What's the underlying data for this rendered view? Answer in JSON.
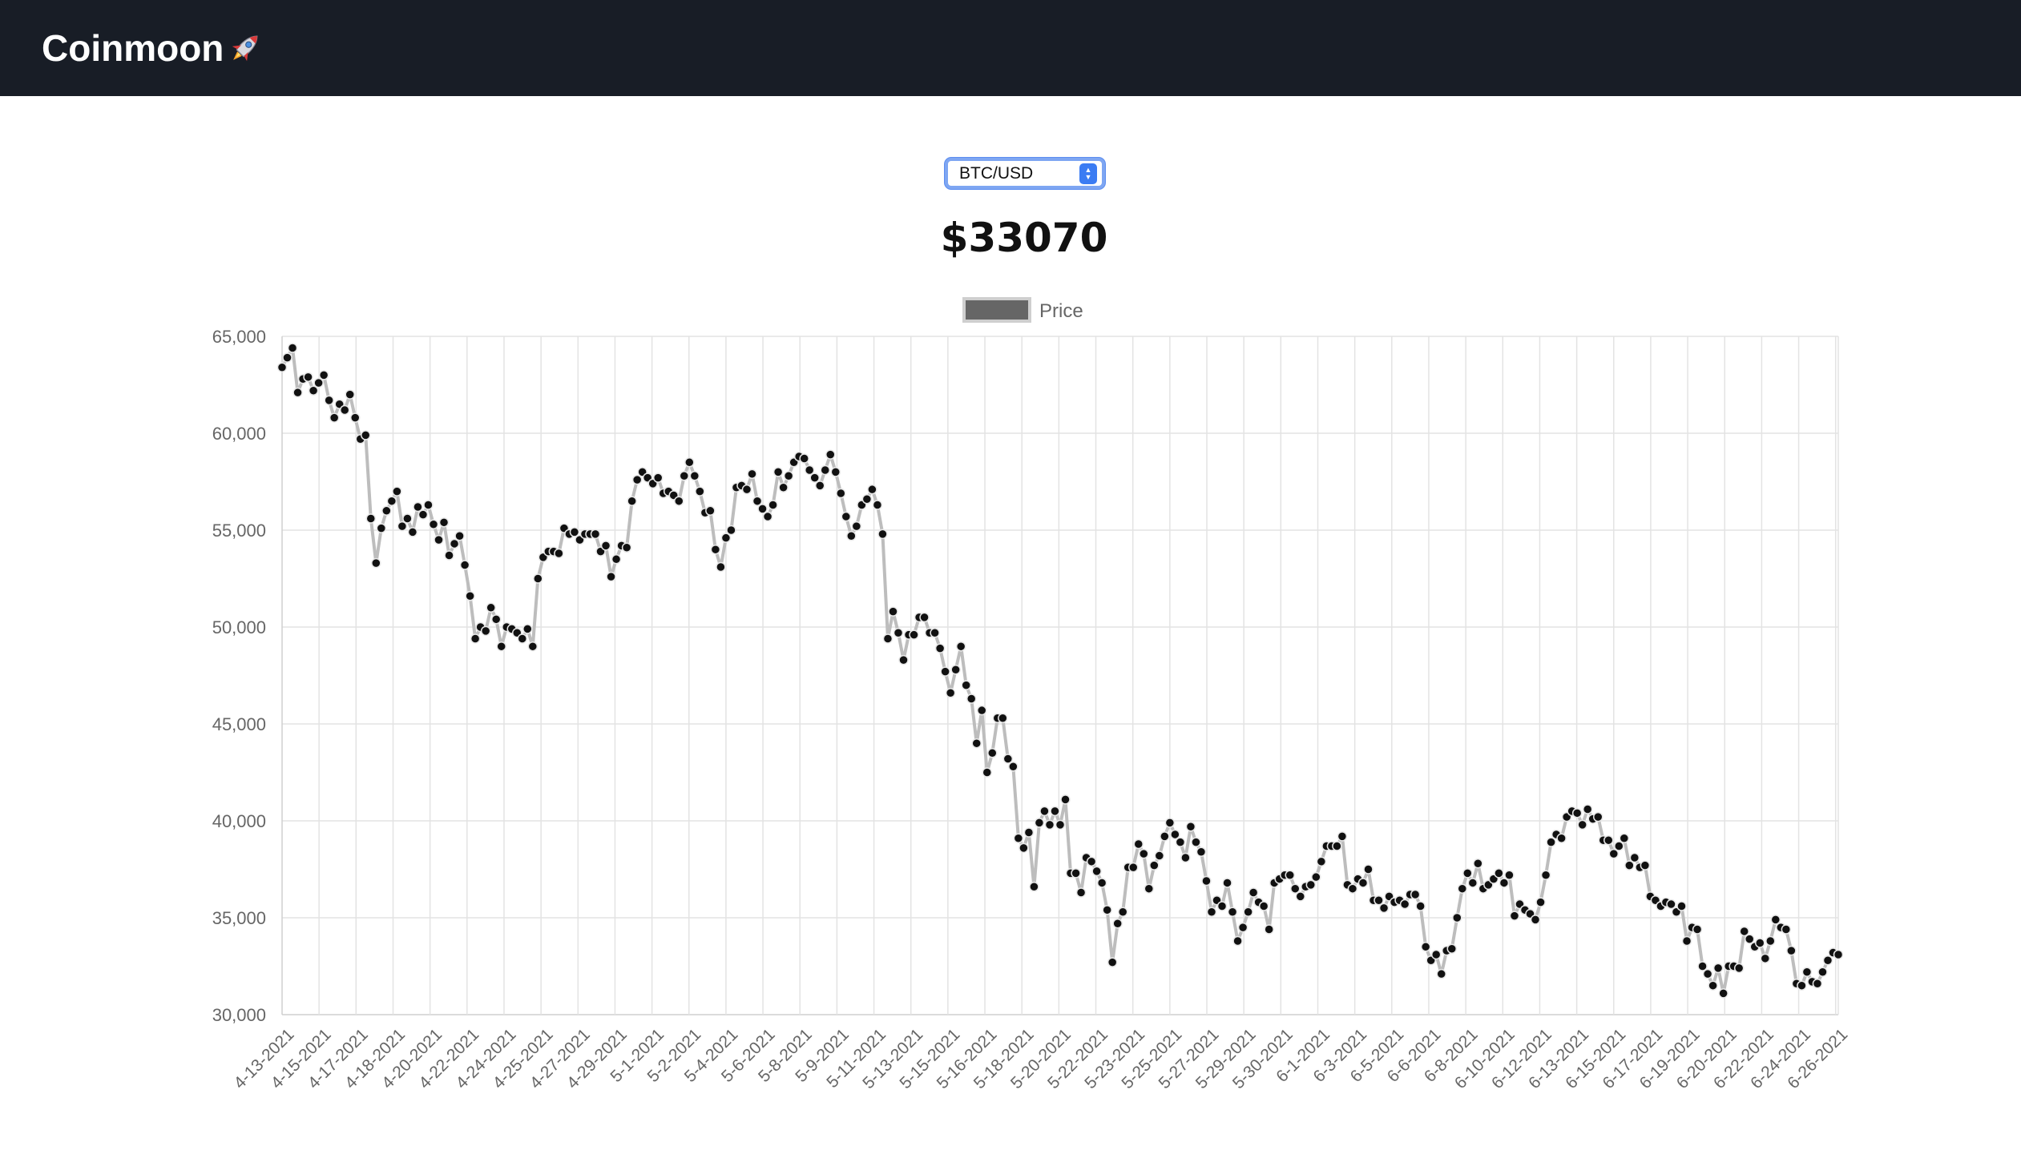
{
  "header": {
    "brand": "Coinmoon"
  },
  "selector": {
    "value": "BTC/USD"
  },
  "price": "$33070",
  "chart_data": {
    "type": "line",
    "legend": {
      "label": "Price",
      "position": "top-center"
    },
    "grid": true,
    "ylim": [
      30000,
      65000
    ],
    "yticks": [
      30000,
      35000,
      40000,
      45000,
      50000,
      55000,
      60000,
      65000
    ],
    "xtick_labels": [
      "4-13-2021",
      "4-15-2021",
      "4-17-2021",
      "4-18-2021",
      "4-20-2021",
      "4-22-2021",
      "4-24-2021",
      "4-25-2021",
      "4-27-2021",
      "4-29-2021",
      "5-1-2021",
      "5-2-2021",
      "5-4-2021",
      "5-6-2021",
      "5-8-2021",
      "5-9-2021",
      "5-11-2021",
      "5-13-2021",
      "5-15-2021",
      "5-16-2021",
      "5-18-2021",
      "5-20-2021",
      "5-22-2021",
      "5-23-2021",
      "5-25-2021",
      "5-27-2021",
      "5-29-2021",
      "5-30-2021",
      "6-1-2021",
      "6-3-2021",
      "6-5-2021",
      "6-6-2021",
      "6-8-2021",
      "6-10-2021",
      "6-12-2021",
      "6-13-2021",
      "6-15-2021",
      "6-17-2021",
      "6-19-2021",
      "6-20-2021",
      "6-22-2021",
      "6-24-2021",
      "6-26-2021"
    ],
    "colors": {
      "line": "#bdbdbd",
      "point": "#111111",
      "legend_box": "#666666"
    },
    "series": [
      {
        "name": "Price",
        "values": [
          63400,
          63900,
          64400,
          62100,
          62800,
          62900,
          62200,
          62600,
          63000,
          61700,
          60800,
          61500,
          61200,
          62000,
          60800,
          59700,
          59900,
          55600,
          53300,
          55100,
          56000,
          56500,
          57000,
          55200,
          55600,
          54900,
          56200,
          55800,
          56300,
          55300,
          54500,
          55400,
          53700,
          54300,
          54700,
          53200,
          51600,
          49400,
          50000,
          49800,
          51000,
          50400,
          49000,
          50000,
          49900,
          49700,
          49400,
          49900,
          49000,
          52500,
          53600,
          53900,
          53900,
          53800,
          55100,
          54800,
          54900,
          54500,
          54800,
          54800,
          54800,
          53900,
          54200,
          52600,
          53500,
          54200,
          54100,
          56500,
          57600,
          58000,
          57700,
          57400,
          57700,
          56900,
          57000,
          56800,
          56500,
          57800,
          58500,
          57800,
          57000,
          55900,
          56000,
          54000,
          53100,
          54600,
          55000,
          57200,
          57300,
          57100,
          57900,
          56500,
          56100,
          55700,
          56300,
          58000,
          57200,
          57800,
          58500,
          58800,
          58700,
          58100,
          57700,
          57300,
          58100,
          58900,
          58000,
          56900,
          55700,
          54700,
          55200,
          56300,
          56600,
          57100,
          56300,
          54800,
          49400,
          50800,
          49700,
          48300,
          49600,
          49600,
          50500,
          50500,
          49700,
          49700,
          48900,
          47700,
          46600,
          47800,
          49000,
          47000,
          46300,
          44000,
          45700,
          42500,
          43500,
          45300,
          45300,
          43200,
          42800,
          39100,
          38600,
          39400,
          36600,
          39900,
          40500,
          39800,
          40500,
          39800,
          41100,
          37300,
          37300,
          36300,
          38100,
          37900,
          37400,
          36800,
          35400,
          32700,
          34700,
          35300,
          37600,
          37600,
          38800,
          38300,
          36500,
          37700,
          38200,
          39200,
          39900,
          39300,
          38900,
          38100,
          39700,
          38900,
          38400,
          36900,
          35300,
          35900,
          35600,
          36800,
          35300,
          33800,
          34500,
          35300,
          36300,
          35800,
          35600,
          34400,
          36800,
          37000,
          37200,
          37200,
          36500,
          36100,
          36600,
          36700,
          37100,
          37900,
          38700,
          38700,
          38700,
          39200,
          36700,
          36500,
          37000,
          36800,
          37500,
          35900,
          35900,
          35500,
          36100,
          35800,
          35900,
          35700,
          36200,
          36200,
          35600,
          33500,
          32800,
          33100,
          32100,
          33300,
          33400,
          35000,
          36500,
          37300,
          36800,
          37800,
          36500,
          36700,
          37000,
          37300,
          36800,
          37200,
          35100,
          35700,
          35400,
          35200,
          34900,
          35800,
          37200,
          38900,
          39300,
          39100,
          40200,
          40500,
          40400,
          39800,
          40600,
          40100,
          40200,
          39000,
          39000,
          38300,
          38700,
          39100,
          37700,
          38100,
          37600,
          37700,
          36100,
          35900,
          35600,
          35800,
          35700,
          35300,
          35600,
          33800,
          34500,
          34400,
          32500,
          32100,
          31500,
          32400,
          31100,
          32500,
          32500,
          32400,
          34300,
          33900,
          33500,
          33700,
          32900,
          33800,
          34900,
          34500,
          34400,
          33300,
          31600,
          31500,
          32200,
          31700,
          31600,
          32200,
          32800,
          33200,
          33100
        ]
      }
    ]
  }
}
